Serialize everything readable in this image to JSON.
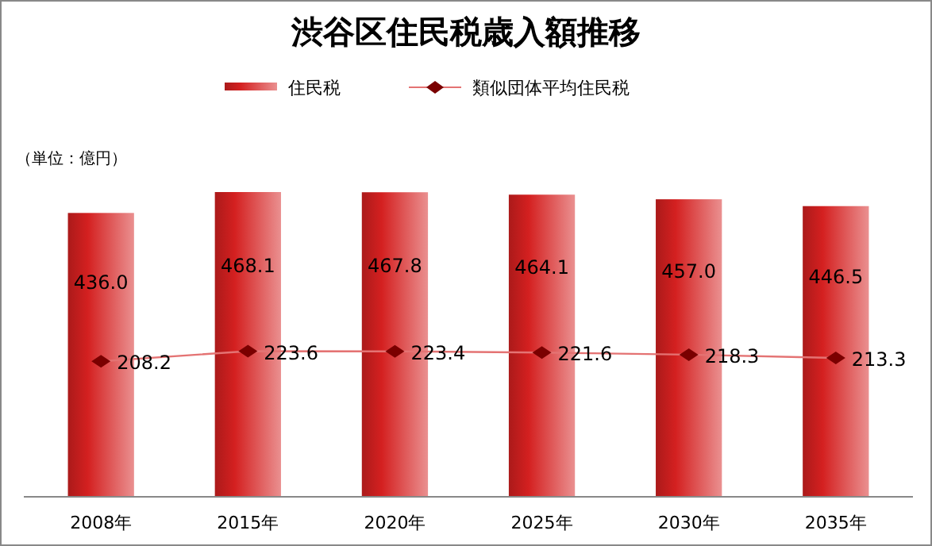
{
  "chart_data": {
    "type": "bar",
    "title": "渋谷区住民税歳入額推移",
    "annotations": [
      "（単位：億円）"
    ],
    "categories": [
      "2008年",
      "2015年",
      "2020年",
      "2025年",
      "2030年",
      "2035年"
    ],
    "series": [
      {
        "name": "住民税",
        "color": "#d42020",
        "values": [
          436.0,
          468.1,
          467.8,
          464.1,
          457.0,
          446.5
        ],
        "value_labels": [
          "436.0",
          "468.1",
          "467.8",
          "464.1",
          "457.0",
          "446.5"
        ]
      },
      {
        "name": "類似団体平均住民税",
        "type": "line",
        "color": "#7a0000",
        "marker": "diamond",
        "values": [
          208.2,
          223.6,
          223.4,
          221.6,
          218.3,
          213.3
        ],
        "value_labels": [
          "208.2",
          "223.6",
          "223.4",
          "221.6",
          "218.3",
          "213.3"
        ]
      }
    ],
    "legend": "top"
  }
}
